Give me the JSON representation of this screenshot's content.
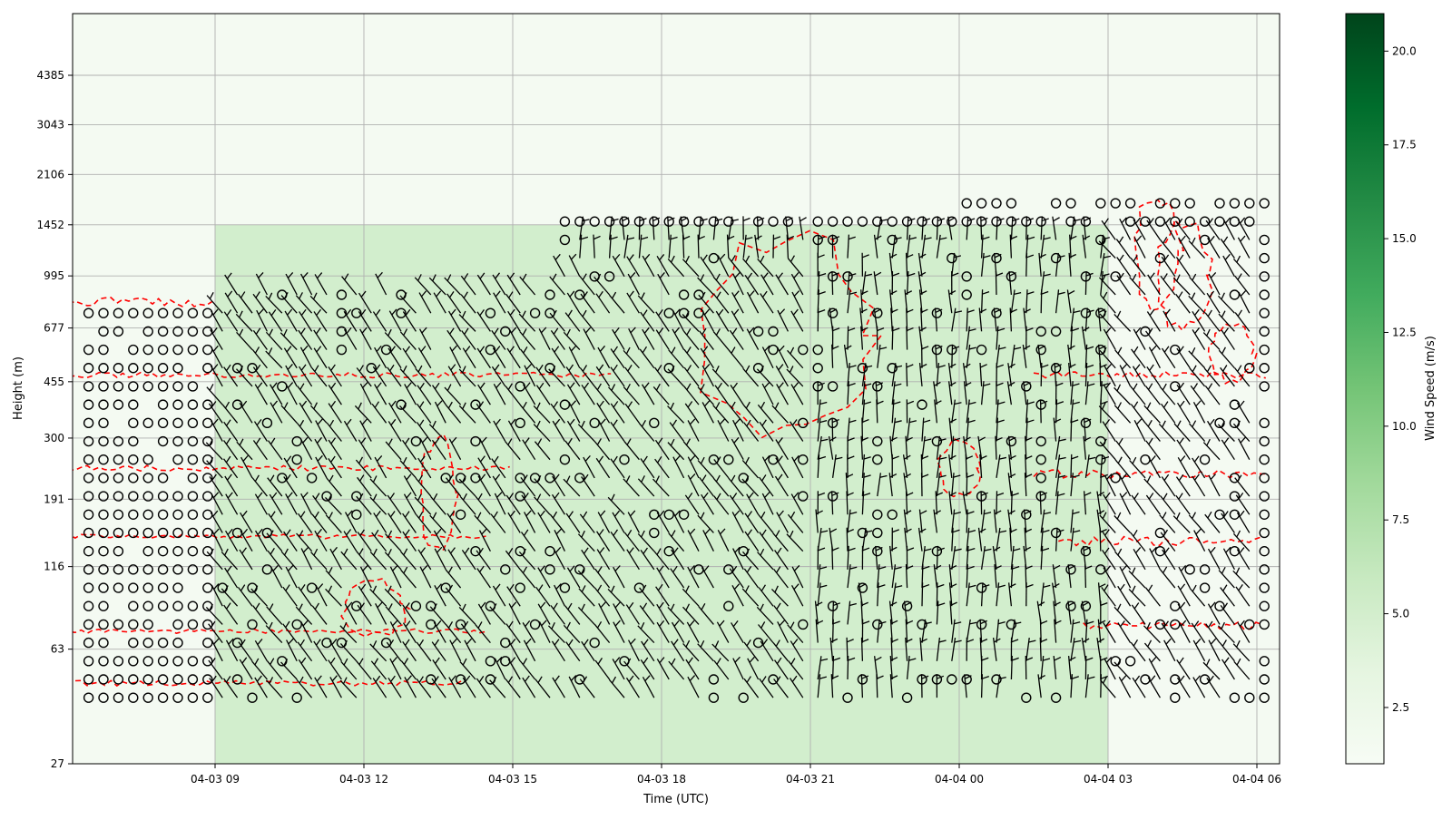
{
  "chart_data": {
    "type": "heatmap",
    "title": "",
    "xlabel": "Time (UTC)",
    "ylabel": "Height (m)",
    "x_ticks": [
      "04-03 09",
      "04-03 12",
      "04-03 15",
      "04-03 18",
      "04-03 21",
      "04-04 00",
      "04-04 03",
      "04-04 06"
    ],
    "y_ticks": [
      "27",
      "63",
      "116",
      "191",
      "300",
      "455",
      "677",
      "995",
      "1452",
      "2106",
      "3043",
      "4385"
    ],
    "grid": true,
    "colorbar": {
      "label": "Wind Speed (m/s)",
      "range": [
        1,
        21
      ],
      "ticks": [
        "2.5",
        "5.0",
        "7.5",
        "10.0",
        "12.5",
        "15.0",
        "17.5",
        "20.0"
      ],
      "colormap": [
        "#f7fcf5",
        "#e5f5e0",
        "#c7e9c0",
        "#a1d99b",
        "#74c476",
        "#41ab5d",
        "#238b45",
        "#006d2c",
        "#00441b"
      ]
    },
    "series": [
      {
        "style": "red dashed contour lines",
        "color": "#ff0000"
      },
      {
        "style": "black wind barbs; open circles = calm",
        "color": "#000000"
      }
    ],
    "wind_regions": [
      {
        "time_range": [
          "04-03 15",
          "04-03 17"
        ],
        "height_range": [
          63,
          191
        ],
        "direction": "south-west"
      },
      {
        "time_range": [
          "04-03 17",
          "04-03 21"
        ],
        "height_range": [
          27,
          995
        ],
        "direction": "north-west"
      },
      {
        "time_range": [
          "04-03 23",
          "04-04 03"
        ],
        "height_range": [
          27,
          1452
        ],
        "direction": "north",
        "speed_band": [
          5,
          7.5
        ]
      },
      {
        "time_range": [
          "04-04 04",
          "04-04 06"
        ],
        "height_range": [
          27,
          1452
        ],
        "direction": "north-west"
      }
    ]
  }
}
